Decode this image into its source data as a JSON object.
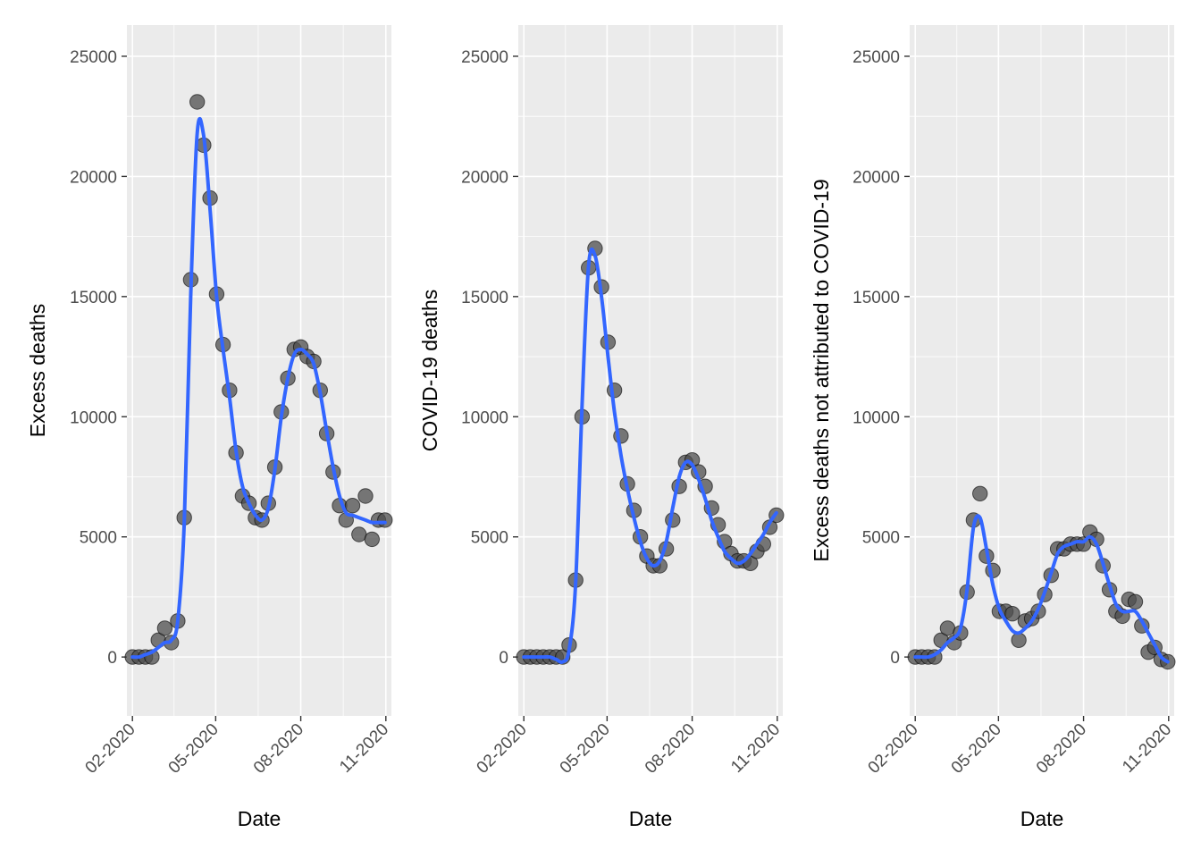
{
  "style": {
    "panel_background": "#ebebeb",
    "grid_major": "#ffffff",
    "grid_minor": "#f5f5f5",
    "point_fill": "#4d4d4d",
    "point_stroke": "#000000",
    "smooth_line": "#3366ff",
    "tick_color": "#333333"
  },
  "chart_data": [
    {
      "type": "scatter",
      "xlabel": "Date",
      "ylabel": "Excess deaths",
      "ylim": [
        -2450,
        26300
      ],
      "yticks": [
        0,
        5000,
        10000,
        15000,
        20000,
        25000
      ],
      "ytick_labels": [
        "0",
        "5000",
        "10000",
        "15000",
        "20000",
        "25000"
      ],
      "xticks": [
        "2020-02-01",
        "2020-05-01",
        "2020-08-01",
        "2020-11-01"
      ],
      "xtick_labels": [
        "02-2020",
        "05-2020",
        "08-2020",
        "11-2020"
      ],
      "x": [
        "2020-02-01",
        "2020-02-08",
        "2020-02-15",
        "2020-02-22",
        "2020-02-29",
        "2020-03-07",
        "2020-03-14",
        "2020-03-21",
        "2020-03-28",
        "2020-04-04",
        "2020-04-11",
        "2020-04-18",
        "2020-04-25",
        "2020-05-02",
        "2020-05-09",
        "2020-05-16",
        "2020-05-23",
        "2020-05-30",
        "2020-06-06",
        "2020-06-13",
        "2020-06-20",
        "2020-06-27",
        "2020-07-04",
        "2020-07-11",
        "2020-07-18",
        "2020-07-25",
        "2020-08-01",
        "2020-08-08",
        "2020-08-15",
        "2020-08-22",
        "2020-08-29",
        "2020-09-05",
        "2020-09-12",
        "2020-09-19",
        "2020-09-26",
        "2020-10-03",
        "2020-10-10",
        "2020-10-17",
        "2020-10-24",
        "2020-10-31"
      ],
      "y": [
        0,
        0,
        0,
        0,
        700,
        1200,
        600,
        1500,
        5800,
        15700,
        23100,
        21300,
        19100,
        15100,
        13000,
        11100,
        8500,
        6700,
        6400,
        5800,
        5700,
        6400,
        7900,
        10200,
        11600,
        12800,
        12900,
        12500,
        12300,
        11100,
        9300,
        7700,
        6300,
        5700,
        6300,
        5100,
        6700,
        4900,
        5700,
        5700
      ],
      "smooth": [
        0,
        0,
        100,
        200,
        400,
        600,
        700,
        1500,
        5600,
        15000,
        21800,
        21700,
        18600,
        15000,
        12800,
        10800,
        8600,
        7100,
        6400,
        5900,
        5700,
        6200,
        7800,
        10000,
        11600,
        12600,
        12800,
        12600,
        12200,
        11000,
        9400,
        7900,
        6700,
        6000,
        5900,
        5800,
        5700,
        5600,
        5600,
        5600
      ]
    },
    {
      "type": "scatter",
      "xlabel": "Date",
      "ylabel": "COVID-19 deaths",
      "ylim": [
        -2450,
        26300
      ],
      "yticks": [
        0,
        5000,
        10000,
        15000,
        20000,
        25000
      ],
      "ytick_labels": [
        "0",
        "5000",
        "10000",
        "15000",
        "20000",
        "25000"
      ],
      "xticks": [
        "2020-02-01",
        "2020-05-01",
        "2020-08-01",
        "2020-11-01"
      ],
      "xtick_labels": [
        "02-2020",
        "05-2020",
        "08-2020",
        "11-2020"
      ],
      "x": [
        "2020-02-01",
        "2020-02-08",
        "2020-02-15",
        "2020-02-22",
        "2020-02-29",
        "2020-03-07",
        "2020-03-14",
        "2020-03-21",
        "2020-03-28",
        "2020-04-04",
        "2020-04-11",
        "2020-04-18",
        "2020-04-25",
        "2020-05-02",
        "2020-05-09",
        "2020-05-16",
        "2020-05-23",
        "2020-05-30",
        "2020-06-06",
        "2020-06-13",
        "2020-06-20",
        "2020-06-27",
        "2020-07-04",
        "2020-07-11",
        "2020-07-18",
        "2020-07-25",
        "2020-08-01",
        "2020-08-08",
        "2020-08-15",
        "2020-08-22",
        "2020-08-29",
        "2020-09-05",
        "2020-09-12",
        "2020-09-19",
        "2020-09-26",
        "2020-10-03",
        "2020-10-10",
        "2020-10-17",
        "2020-10-24",
        "2020-10-31"
      ],
      "y": [
        0,
        0,
        0,
        0,
        0,
        0,
        0,
        500,
        3200,
        10000,
        16200,
        17000,
        15400,
        13100,
        11100,
        9200,
        7200,
        6100,
        5000,
        4200,
        3800,
        3800,
        4500,
        5700,
        7100,
        8100,
        8200,
        7700,
        7100,
        6200,
        5500,
        4800,
        4300,
        4000,
        4000,
        3900,
        4400,
        4700,
        5400,
        5900
      ],
      "smooth": [
        0,
        0,
        0,
        0,
        0,
        -100,
        -200,
        300,
        3100,
        10500,
        16300,
        16700,
        15000,
        12500,
        10200,
        8400,
        7000,
        5800,
        4800,
        4100,
        3800,
        4000,
        4800,
        6200,
        7500,
        8100,
        8000,
        7400,
        6600,
        5700,
        5000,
        4400,
        4100,
        3900,
        4000,
        4300,
        4700,
        5100,
        5600,
        6000
      ]
    },
    {
      "type": "scatter",
      "xlabel": "Date",
      "ylabel": "Excess deaths not attributed to COVID-19",
      "ylim": [
        -2450,
        26300
      ],
      "yticks": [
        0,
        5000,
        10000,
        15000,
        20000,
        25000
      ],
      "ytick_labels": [
        "0",
        "5000",
        "10000",
        "15000",
        "20000",
        "25000"
      ],
      "xticks": [
        "2020-02-01",
        "2020-05-01",
        "2020-08-01",
        "2020-11-01"
      ],
      "xtick_labels": [
        "02-2020",
        "05-2020",
        "08-2020",
        "11-2020"
      ],
      "x": [
        "2020-02-01",
        "2020-02-08",
        "2020-02-15",
        "2020-02-22",
        "2020-02-29",
        "2020-03-07",
        "2020-03-14",
        "2020-03-21",
        "2020-03-28",
        "2020-04-04",
        "2020-04-11",
        "2020-04-18",
        "2020-04-25",
        "2020-05-02",
        "2020-05-09",
        "2020-05-16",
        "2020-05-23",
        "2020-05-30",
        "2020-06-06",
        "2020-06-13",
        "2020-06-20",
        "2020-06-27",
        "2020-07-04",
        "2020-07-11",
        "2020-07-18",
        "2020-07-25",
        "2020-08-01",
        "2020-08-08",
        "2020-08-15",
        "2020-08-22",
        "2020-08-29",
        "2020-09-05",
        "2020-09-12",
        "2020-09-19",
        "2020-09-26",
        "2020-10-03",
        "2020-10-10",
        "2020-10-17",
        "2020-10-24",
        "2020-10-31"
      ],
      "y": [
        0,
        0,
        0,
        0,
        700,
        1200,
        600,
        1000,
        2700,
        5700,
        6800,
        4200,
        3600,
        1900,
        1900,
        1800,
        700,
        1500,
        1600,
        1900,
        2600,
        3400,
        4500,
        4500,
        4700,
        4700,
        4700,
        5200,
        4900,
        3800,
        2800,
        1900,
        1700,
        2400,
        2300,
        1300,
        200,
        400,
        -100,
        -200
      ],
      "smooth": [
        0,
        0,
        0,
        100,
        300,
        600,
        800,
        1200,
        2800,
        5400,
        5800,
        4500,
        3000,
        2000,
        1500,
        1100,
        1000,
        1200,
        1500,
        2000,
        2700,
        3500,
        4300,
        4600,
        4700,
        4800,
        4800,
        5000,
        4700,
        3900,
        3000,
        2200,
        1900,
        1900,
        1900,
        1500,
        1000,
        500,
        0,
        -200
      ]
    }
  ]
}
